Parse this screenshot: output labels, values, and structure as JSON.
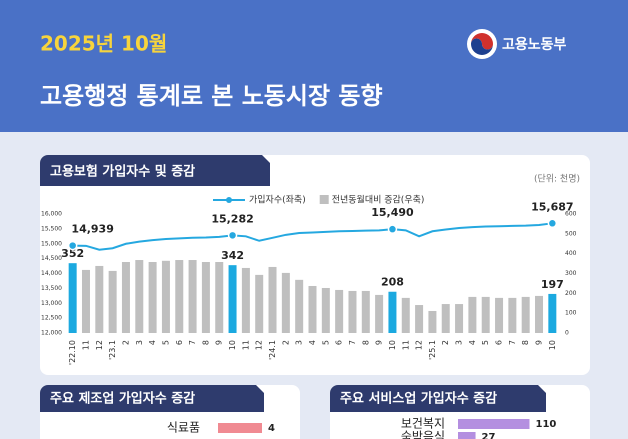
{
  "header": {
    "date": "2025년 10월",
    "title": "고용행정 통계로 본 노동시장 동향",
    "logo": "고용노동부"
  },
  "chart_data": [
    {
      "type": "combo",
      "title": "고용보험 가입자수 및 증감",
      "unit": "(단위: 천명)",
      "categories": [
        "'22.10",
        "11",
        "12",
        "'23.1",
        "2",
        "3",
        "4",
        "5",
        "6",
        "7",
        "8",
        "9",
        "10",
        "11",
        "12",
        "'24.1",
        "2",
        "3",
        "4",
        "5",
        "6",
        "7",
        "8",
        "9",
        "10",
        "11",
        "12",
        "'25.1",
        "2",
        "3",
        "4",
        "5",
        "6",
        "7",
        "8",
        "9",
        "10"
      ],
      "series": [
        {
          "name": "가입자수(좌축)",
          "type": "line",
          "color": "#25a8e0",
          "values": [
            14939,
            14930,
            14800,
            14850,
            15000,
            15070,
            15120,
            15160,
            15180,
            15200,
            15210,
            15230,
            15282,
            15250,
            15100,
            15200,
            15300,
            15360,
            15380,
            15400,
            15420,
            15430,
            15440,
            15450,
            15490,
            15450,
            15250,
            15420,
            15480,
            15530,
            15560,
            15580,
            15590,
            15600,
            15610,
            15630,
            15687
          ],
          "value_labels": [
            "14,939",
            null,
            null,
            null,
            null,
            null,
            null,
            null,
            null,
            null,
            null,
            null,
            "15,282",
            null,
            null,
            null,
            null,
            null,
            null,
            null,
            null,
            null,
            null,
            null,
            "15,490",
            null,
            null,
            null,
            null,
            null,
            null,
            null,
            null,
            null,
            null,
            null,
            "15,687"
          ]
        },
        {
          "name": "전년동월대비 증감(우축)",
          "type": "bar",
          "axis": "y2",
          "color": "#bfbfbf",
          "highlight_color": "#1ba9e0",
          "values": [
            352,
            318,
            338,
            313,
            358,
            368,
            358,
            364,
            368,
            368,
            358,
            358,
            342,
            328,
            293,
            333,
            303,
            268,
            237,
            227,
            217,
            212,
            212,
            192,
            208,
            177,
            141,
            111,
            146,
            146,
            182,
            182,
            177,
            177,
            182,
            187,
            197
          ],
          "value_labels": [
            "352",
            null,
            null,
            null,
            null,
            null,
            null,
            null,
            null,
            null,
            null,
            null,
            "342",
            null,
            null,
            null,
            null,
            null,
            null,
            null,
            null,
            null,
            null,
            null,
            "208",
            null,
            null,
            null,
            null,
            null,
            null,
            null,
            null,
            null,
            null,
            null,
            "197"
          ]
        }
      ],
      "ylim": [
        12000,
        16000
      ],
      "yticks": [
        {
          "value": 12000,
          "label": "12,000"
        },
        {
          "value": 12500,
          "label": "12,500"
        },
        {
          "value": 13000,
          "label": "13,000"
        },
        {
          "value": 13500,
          "label": "13,500"
        },
        {
          "value": 14000,
          "label": "14,000"
        },
        {
          "value": 14500,
          "label": "14,500"
        },
        {
          "value": 15000,
          "label": "15,000"
        },
        {
          "value": 15500,
          "label": "15,500"
        },
        {
          "value": 16000,
          "label": "16,000"
        }
      ],
      "y2lim": [
        0,
        600
      ],
      "y2ticks": [
        0,
        100,
        200,
        300,
        400,
        500,
        600
      ]
    },
    {
      "type": "hbar",
      "title": "주요 제조업 가입자수 증감",
      "color": "#f08a92",
      "categories": [
        "식료품"
      ],
      "values": [
        4
      ]
    },
    {
      "type": "hbar",
      "title": "주요 서비스업 가입자수 증감",
      "color": "#b48fe0",
      "categories": [
        "보건복지",
        "숙박음식"
      ],
      "values": [
        110,
        27
      ]
    }
  ]
}
